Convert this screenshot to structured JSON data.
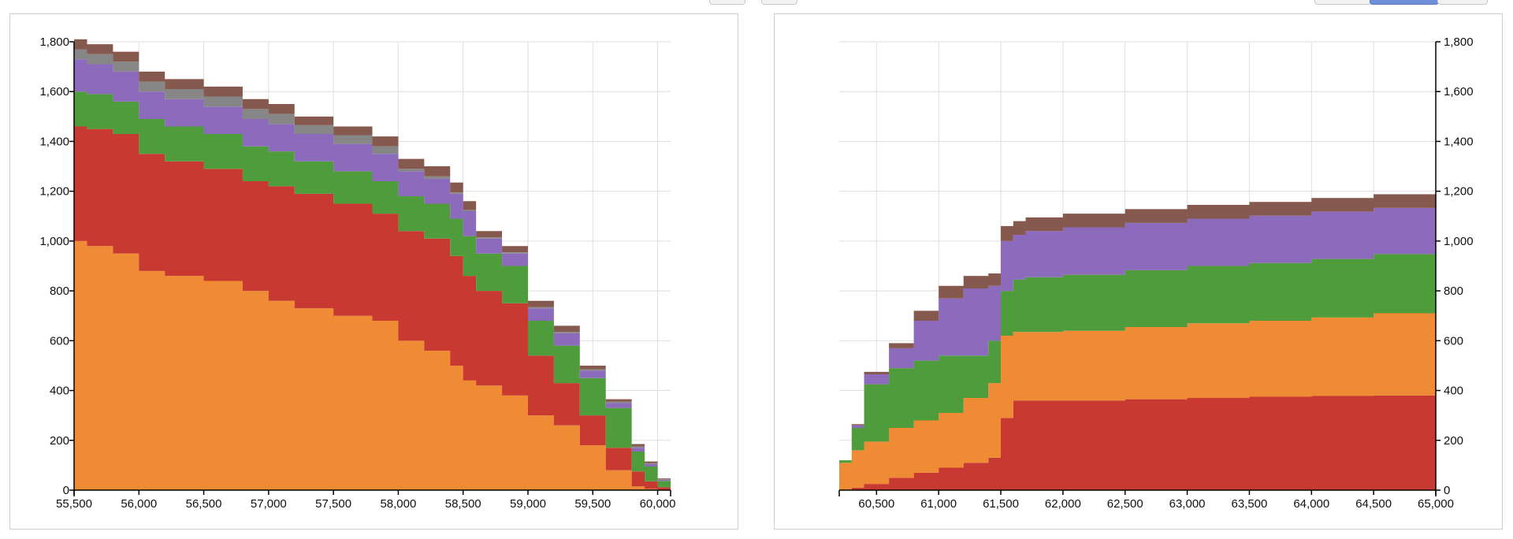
{
  "chart_data": [
    {
      "type": "area",
      "title": "",
      "xlabel": "",
      "ylabel": "",
      "stacked": true,
      "y_axis_side": "left",
      "xlim": [
        55500,
        60100
      ],
      "ylim": [
        0,
        1800
      ],
      "x_ticks": [
        "55,500",
        "56,000",
        "56,500",
        "57,000",
        "57,500",
        "58,000",
        "58,500",
        "59,000",
        "59,500",
        "60,000"
      ],
      "y_ticks": [
        "0",
        "200",
        "400",
        "600",
        "800",
        "1,000",
        "1,200",
        "1,400",
        "1,600",
        "1,800"
      ],
      "x": [
        55500,
        55600,
        55800,
        56000,
        56200,
        56500,
        56800,
        57000,
        57200,
        57500,
        57800,
        58000,
        58200,
        58400,
        58500,
        58600,
        58800,
        59000,
        59200,
        59400,
        59600,
        59800,
        59900,
        60000,
        60100
      ],
      "series": [
        {
          "name": "orange",
          "color": "#ef8a35",
          "values": [
            1000,
            980,
            950,
            880,
            860,
            840,
            800,
            760,
            730,
            700,
            680,
            600,
            560,
            500,
            440,
            420,
            380,
            300,
            260,
            180,
            80,
            15,
            5,
            2,
            0
          ]
        },
        {
          "name": "red",
          "color": "#c83a31",
          "values": [
            460,
            470,
            480,
            470,
            460,
            450,
            440,
            460,
            460,
            450,
            430,
            440,
            450,
            440,
            420,
            380,
            370,
            240,
            170,
            120,
            90,
            60,
            30,
            10,
            0
          ]
        },
        {
          "name": "green",
          "color": "#4f9c3c",
          "values": [
            140,
            140,
            130,
            140,
            140,
            140,
            140,
            140,
            130,
            130,
            130,
            140,
            140,
            150,
            160,
            150,
            150,
            140,
            150,
            150,
            160,
            80,
            60,
            25,
            0
          ]
        },
        {
          "name": "purple",
          "color": "#8c6bbd",
          "values": [
            130,
            120,
            120,
            110,
            110,
            110,
            110,
            110,
            110,
            110,
            110,
            100,
            100,
            100,
            100,
            60,
            50,
            50,
            50,
            30,
            20,
            15,
            10,
            5,
            0
          ]
        },
        {
          "name": "gray",
          "color": "#868686",
          "values": [
            40,
            40,
            40,
            40,
            40,
            40,
            40,
            40,
            35,
            35,
            30,
            10,
            10,
            5,
            5,
            5,
            5,
            5,
            5,
            5,
            5,
            5,
            3,
            2,
            0
          ]
        },
        {
          "name": "brown",
          "color": "#86594f",
          "values": [
            40,
            40,
            40,
            40,
            40,
            40,
            40,
            40,
            35,
            35,
            40,
            40,
            40,
            40,
            35,
            25,
            25,
            25,
            25,
            15,
            10,
            10,
            7,
            3,
            0
          ]
        }
      ]
    },
    {
      "type": "area",
      "title": "",
      "xlabel": "",
      "ylabel": "",
      "stacked": true,
      "y_axis_side": "right",
      "xlim": [
        60200,
        65000
      ],
      "ylim": [
        0,
        1800
      ],
      "x_ticks": [
        "60,500",
        "61,000",
        "61,500",
        "62,000",
        "62,500",
        "63,000",
        "63,500",
        "64,000",
        "64,500",
        "65,000"
      ],
      "y_ticks": [
        "0",
        "200",
        "400",
        "600",
        "800",
        "1,000",
        "1,200",
        "1,400",
        "1,600",
        "1,800"
      ],
      "x": [
        60200,
        60300,
        60400,
        60600,
        60800,
        61000,
        61200,
        61400,
        61500,
        61600,
        61700,
        62000,
        62500,
        63000,
        63500,
        64000,
        64500,
        65000
      ],
      "series": [
        {
          "name": "red",
          "color": "#c83a31",
          "values": [
            0,
            10,
            25,
            50,
            70,
            90,
            110,
            130,
            290,
            360,
            360,
            360,
            365,
            370,
            375,
            378,
            380,
            380
          ]
        },
        {
          "name": "orange",
          "color": "#ef8a35",
          "values": [
            110,
            150,
            170,
            200,
            210,
            220,
            260,
            300,
            330,
            275,
            275,
            280,
            290,
            300,
            305,
            315,
            330,
            340
          ]
        },
        {
          "name": "green",
          "color": "#4f9c3c",
          "values": [
            10,
            90,
            230,
            240,
            240,
            230,
            170,
            170,
            180,
            210,
            220,
            225,
            228,
            230,
            232,
            235,
            238,
            240
          ]
        },
        {
          "name": "purple",
          "color": "#8c6bbd",
          "values": [
            0,
            10,
            40,
            80,
            160,
            230,
            270,
            220,
            200,
            180,
            185,
            190,
            190,
            190,
            190,
            190,
            185,
            180
          ]
        },
        {
          "name": "brown",
          "color": "#86594f",
          "values": [
            0,
            5,
            10,
            20,
            40,
            50,
            50,
            50,
            60,
            55,
            55,
            55,
            55,
            55,
            55,
            55,
            55,
            55
          ]
        }
      ]
    }
  ]
}
